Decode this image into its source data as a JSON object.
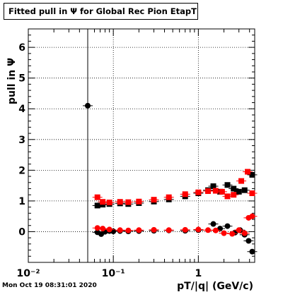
{
  "title": "Fitted pull in  Ψ  for Global Rec Pion EtapT",
  "footer": "Mon Oct 19 08:31:01 2020",
  "chart_data": {
    "type": "scatter",
    "xlabel": "pT/|q| (GeV/c)",
    "ylabel": "pull in  Ψ",
    "xscale": "log",
    "xlim": [
      0.01,
      4.6
    ],
    "ylim": [
      -1.0,
      6.6
    ],
    "grid": true,
    "x_tick_labels": [
      "10⁻²",
      "10⁻¹",
      "1"
    ],
    "y_tick_labels": [
      "0",
      "1",
      "2",
      "3",
      "4",
      "5",
      "6"
    ],
    "x_ticks": [
      0.01,
      0.1,
      1
    ],
    "y_ticks": [
      0,
      1,
      2,
      3,
      4,
      5,
      6
    ],
    "series": [
      {
        "color": "#000000",
        "marker": "circle",
        "points": [
          {
            "x": 0.05,
            "y": 4.1
          },
          {
            "x": 0.065,
            "y": -0.02
          },
          {
            "x": 0.072,
            "y": -0.08
          },
          {
            "x": 0.08,
            "y": 0.0
          },
          {
            "x": 0.09,
            "y": 0.02
          },
          {
            "x": 0.1,
            "y": 0.01
          },
          {
            "x": 0.12,
            "y": 0.02
          },
          {
            "x": 0.15,
            "y": 0.01
          },
          {
            "x": 0.2,
            "y": 0.02
          },
          {
            "x": 0.3,
            "y": 0.03
          },
          {
            "x": 0.45,
            "y": 0.04
          },
          {
            "x": 0.7,
            "y": 0.03
          },
          {
            "x": 1.0,
            "y": 0.05
          },
          {
            "x": 1.5,
            "y": 0.25
          },
          {
            "x": 1.8,
            "y": 0.1
          },
          {
            "x": 2.2,
            "y": 0.18
          },
          {
            "x": 2.7,
            "y": -0.03
          },
          {
            "x": 3.1,
            "y": 0.05
          },
          {
            "x": 3.5,
            "y": -0.1
          },
          {
            "x": 3.9,
            "y": -0.3
          },
          {
            "x": 4.3,
            "y": -0.65
          }
        ]
      },
      {
        "color": "#000000",
        "marker": "square",
        "points": [
          {
            "x": 0.065,
            "y": 0.85
          },
          {
            "x": 0.075,
            "y": 0.88
          },
          {
            "x": 0.09,
            "y": 0.9
          },
          {
            "x": 0.12,
            "y": 0.92
          },
          {
            "x": 0.15,
            "y": 0.9
          },
          {
            "x": 0.2,
            "y": 0.93
          },
          {
            "x": 0.3,
            "y": 0.98
          },
          {
            "x": 0.45,
            "y": 1.05
          },
          {
            "x": 0.7,
            "y": 1.15
          },
          {
            "x": 1.0,
            "y": 1.25
          },
          {
            "x": 1.3,
            "y": 1.35
          },
          {
            "x": 1.5,
            "y": 1.48
          },
          {
            "x": 1.8,
            "y": 1.3
          },
          {
            "x": 2.2,
            "y": 1.52
          },
          {
            "x": 2.6,
            "y": 1.4
          },
          {
            "x": 3.0,
            "y": 1.3
          },
          {
            "x": 3.5,
            "y": 1.35
          },
          {
            "x": 4.3,
            "y": 1.85
          }
        ]
      },
      {
        "color": "#ff0000",
        "marker": "circle",
        "points": [
          {
            "x": 0.065,
            "y": 0.12
          },
          {
            "x": 0.075,
            "y": 0.1
          },
          {
            "x": 0.09,
            "y": 0.07
          },
          {
            "x": 0.12,
            "y": 0.05
          },
          {
            "x": 0.15,
            "y": 0.04
          },
          {
            "x": 0.2,
            "y": 0.05
          },
          {
            "x": 0.3,
            "y": 0.06
          },
          {
            "x": 0.45,
            "y": 0.05
          },
          {
            "x": 0.7,
            "y": 0.06
          },
          {
            "x": 1.0,
            "y": 0.07
          },
          {
            "x": 1.3,
            "y": 0.05
          },
          {
            "x": 1.6,
            "y": 0.04
          },
          {
            "x": 2.0,
            "y": -0.05
          },
          {
            "x": 2.5,
            "y": -0.07
          },
          {
            "x": 3.0,
            "y": 0.05
          },
          {
            "x": 3.5,
            "y": -0.05
          },
          {
            "x": 3.9,
            "y": 0.45
          },
          {
            "x": 4.3,
            "y": 0.5
          }
        ]
      },
      {
        "color": "#ff0000",
        "marker": "square",
        "points": [
          {
            "x": 0.065,
            "y": 1.12
          },
          {
            "x": 0.075,
            "y": 0.97
          },
          {
            "x": 0.09,
            "y": 0.95
          },
          {
            "x": 0.12,
            "y": 0.97
          },
          {
            "x": 0.15,
            "y": 0.96
          },
          {
            "x": 0.2,
            "y": 0.98
          },
          {
            "x": 0.3,
            "y": 1.04
          },
          {
            "x": 0.45,
            "y": 1.12
          },
          {
            "x": 0.7,
            "y": 1.22
          },
          {
            "x": 1.0,
            "y": 1.28
          },
          {
            "x": 1.3,
            "y": 1.32
          },
          {
            "x": 1.6,
            "y": 1.33
          },
          {
            "x": 1.9,
            "y": 1.3
          },
          {
            "x": 2.2,
            "y": 1.15
          },
          {
            "x": 2.6,
            "y": 1.2
          },
          {
            "x": 3.2,
            "y": 1.65
          },
          {
            "x": 3.8,
            "y": 1.95
          },
          {
            "x": 4.3,
            "y": 1.25
          }
        ]
      }
    ]
  }
}
